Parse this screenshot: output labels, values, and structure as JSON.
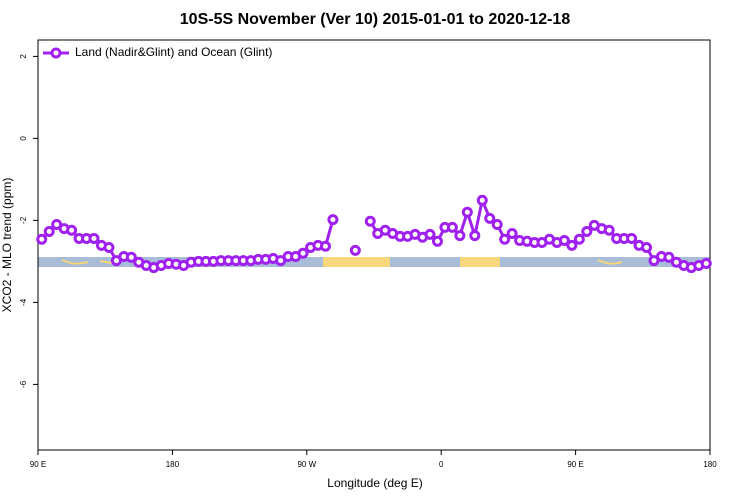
{
  "chart_data": {
    "type": "line",
    "title": "10S-5S November (Ver 10)   2015-01-01 to 2020-12-18",
    "xlabel": "Longitude (deg E)",
    "ylabel": "XCO2 - MLO trend (ppm)",
    "x": [
      92.5,
      97.5,
      102.5,
      107.5,
      112.5,
      117.5,
      122.5,
      127.5,
      132.5,
      137.5,
      142.5,
      147.5,
      152.5,
      157.5,
      162.5,
      167.5,
      172.5,
      177.5,
      182.5,
      187.5,
      192.5,
      197.5,
      202.5,
      207.5,
      212.5,
      217.5,
      222.5,
      227.5,
      232.5,
      237.5,
      242.5,
      247.5,
      252.5,
      257.5,
      262.5,
      267.5,
      272.5,
      277.5,
      282.5,
      287.5,
      292.5,
      297.5,
      302.5,
      307.5,
      312.5,
      317.5,
      322.5,
      327.5,
      332.5,
      337.5,
      342.5,
      347.5,
      352.5,
      357.5,
      362.5,
      367.5,
      372.5,
      377.5,
      382.5,
      387.5,
      392.5,
      397.5,
      402.5,
      407.5,
      412.5,
      417.5,
      422.5,
      427.5,
      432.5,
      437.5,
      442.5,
      447.5,
      452.5,
      457.5,
      462.5,
      467.5,
      472.5,
      477.5,
      482.5,
      487.5,
      492.5,
      497.5,
      502.5,
      507.5,
      512.5,
      517.5,
      522.5,
      527.5,
      532.5,
      537.5
    ],
    "series": [
      {
        "name": "Land (Nadir&Glint) and Ocean (Glint)",
        "color": "#a020f0",
        "values": [
          -2.46,
          -2.27,
          -2.1,
          -2.2,
          -2.24,
          -2.44,
          -2.44,
          -2.44,
          -2.61,
          -2.66,
          -2.98,
          -2.88,
          -2.9,
          -3.02,
          -3.1,
          -3.15,
          -3.1,
          -3.05,
          -3.07,
          -3.1,
          -3.02,
          -3.0,
          -3.0,
          -3.0,
          -2.98,
          -2.98,
          -2.98,
          -2.98,
          -2.98,
          -2.95,
          -2.95,
          -2.93,
          -2.98,
          -2.88,
          -2.88,
          -2.8,
          -2.66,
          -2.61,
          -2.63,
          -1.98,
          null,
          null,
          -2.73,
          null,
          -2.02,
          -2.32,
          -2.24,
          -2.32,
          -2.39,
          -2.39,
          -2.34,
          -2.41,
          -2.34,
          -2.51,
          -2.17,
          -2.17,
          -2.37,
          -1.8,
          -2.37,
          -1.51,
          -1.95,
          -2.1,
          -2.46,
          -2.32,
          -2.49,
          -2.51,
          -2.54,
          -2.54,
          -2.46,
          -2.54,
          -2.49,
          -2.61,
          -2.46,
          -2.27,
          -2.12,
          -2.2,
          -2.24,
          -2.44,
          -2.44,
          -2.44,
          -2.61,
          -2.66,
          -2.98,
          -2.88,
          -2.9,
          -3.02,
          -3.1,
          -3.15,
          -3.1,
          -3.05
        ]
      }
    ],
    "xlim": [
      90,
      540
    ],
    "xticks": [
      {
        "value": 90,
        "label": "90 E"
      },
      {
        "value": 180,
        "label": "180"
      },
      {
        "value": 270,
        "label": "90 W"
      },
      {
        "value": 360,
        "label": "0"
      },
      {
        "value": 450,
        "label": "90 E"
      },
      {
        "value": 540,
        "label": "180"
      }
    ],
    "ylim": [
      -7.6,
      2.4
    ],
    "yticks": [
      -6,
      -4,
      -2,
      0,
      2
    ],
    "legend": "top-left"
  }
}
